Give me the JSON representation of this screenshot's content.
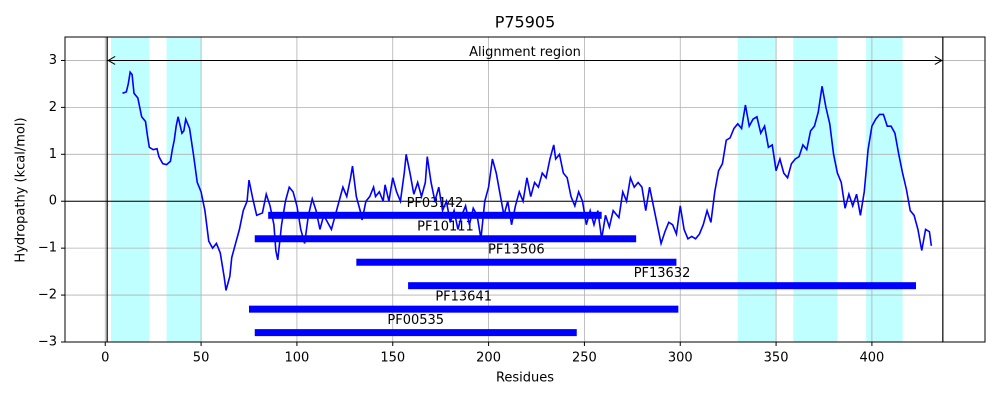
{
  "chart_data": {
    "type": "line",
    "title": "P75905",
    "xlabel": "Residues",
    "ylabel": "Hydropathy (kcal/mol)",
    "color": "#0000ff",
    "grid": true,
    "xlim": [
      -21,
      459
    ],
    "ylim": [
      -3,
      3.5
    ],
    "xticks": [
      0,
      50,
      100,
      150,
      200,
      250,
      300,
      350,
      400
    ],
    "yticks": [
      {
        "value": -3,
        "label": "−3"
      },
      {
        "value": -2,
        "label": "−2"
      },
      {
        "value": -1,
        "label": "−1"
      },
      0,
      1,
      2,
      3
    ],
    "hline": 0,
    "spans": [
      [
        3,
        23
      ],
      [
        32,
        50
      ],
      [
        330,
        350
      ],
      [
        359,
        382
      ],
      [
        397,
        416
      ]
    ],
    "span_color": "#c0ffff",
    "vlines": [
      1,
      437
    ],
    "annotation": {
      "text": "Alignment region",
      "y": 3
    },
    "domains": [
      {
        "label": "PF03142",
        "start": 85,
        "end": 259,
        "y": -0.3
      },
      {
        "label": "PF10111",
        "start": 78,
        "end": 277,
        "y": -0.8
      },
      {
        "label": "PF13506",
        "start": 131,
        "end": 298,
        "y": -1.3
      },
      {
        "label": "PF13632",
        "start": 158,
        "end": 423,
        "y": -1.8
      },
      {
        "label": "PF13641",
        "start": 75,
        "end": 299,
        "y": -2.3
      },
      {
        "label": "PF00535",
        "start": 78,
        "end": 246,
        "y": -2.8
      }
    ],
    "x": [
      9,
      11,
      12,
      13,
      14,
      15,
      17,
      19,
      21,
      22,
      23,
      25,
      27,
      28,
      30,
      32,
      34,
      35,
      36,
      37,
      38,
      40,
      41,
      42,
      44,
      46,
      48,
      50,
      52,
      54,
      56,
      58,
      60,
      62,
      63,
      65,
      66,
      68,
      70,
      72,
      74,
      75,
      77,
      79,
      82,
      84,
      86,
      88,
      89,
      90,
      92,
      94,
      96,
      98,
      100,
      102,
      104,
      106,
      108,
      110,
      112,
      114,
      118,
      120,
      122,
      124,
      126,
      128,
      129,
      131,
      133,
      134,
      136,
      138,
      140,
      141,
      143,
      145,
      146,
      148,
      150,
      152,
      154,
      156,
      157,
      159,
      161,
      163,
      165,
      167,
      168,
      170,
      172,
      174,
      176,
      178,
      180,
      182,
      184,
      186,
      188,
      190,
      192,
      194,
      196,
      198,
      200,
      202,
      204,
      206,
      208,
      210,
      212,
      214,
      216,
      218,
      220,
      222,
      224,
      226,
      228,
      230,
      232,
      234,
      235,
      237,
      239,
      241,
      243,
      245,
      247,
      249,
      251,
      253,
      255,
      257,
      259,
      261,
      263,
      265,
      268,
      270,
      272,
      274,
      276,
      278,
      280,
      282,
      284,
      286,
      288,
      290,
      292,
      294,
      296,
      298,
      300,
      302,
      304,
      306,
      308,
      310,
      312,
      314,
      316,
      318,
      320,
      322,
      324,
      326,
      328,
      330,
      332,
      334,
      336,
      338,
      340,
      342,
      344,
      346,
      348,
      350,
      352,
      354,
      356,
      358,
      360,
      362,
      364,
      366,
      368,
      370,
      372,
      374,
      376,
      378,
      380,
      382,
      384,
      386,
      388,
      390,
      392,
      394,
      396,
      398,
      400,
      402,
      404,
      406,
      408,
      410,
      412,
      414,
      416,
      418,
      420,
      422,
      424,
      426,
      428,
      430,
      431
    ],
    "values": [
      2.3,
      2.33,
      2.5,
      2.75,
      2.7,
      2.3,
      2.2,
      1.8,
      1.7,
      1.4,
      1.15,
      1.1,
      1.12,
      0.95,
      0.8,
      0.78,
      0.85,
      1.1,
      1.3,
      1.6,
      1.8,
      1.45,
      1.5,
      1.75,
      1.55,
      1.0,
      0.4,
      0.2,
      -0.2,
      -0.85,
      -1.0,
      -0.9,
      -1.1,
      -1.6,
      -1.9,
      -1.6,
      -1.2,
      -0.9,
      -0.6,
      -0.2,
      0.0,
      0.45,
      0.05,
      -0.3,
      -0.25,
      0.15,
      -0.1,
      -0.5,
      -1.05,
      -1.25,
      -0.5,
      0.0,
      0.3,
      0.2,
      -0.1,
      -0.6,
      -0.9,
      -0.3,
      0.05,
      -0.2,
      -0.6,
      -0.3,
      -0.6,
      -0.3,
      0.0,
      0.3,
      0.1,
      0.5,
      0.75,
      0.1,
      -0.2,
      -0.4,
      0.0,
      0.1,
      0.3,
      0.1,
      0.2,
      0.0,
      0.35,
      0.0,
      0.5,
      0.2,
      0.0,
      0.6,
      1.0,
      0.6,
      0.15,
      0.4,
      0.1,
      0.4,
      0.95,
      0.4,
      0.0,
      0.3,
      -0.2,
      0.0,
      -0.45,
      -0.2,
      -0.6,
      -0.3,
      -0.1,
      -0.5,
      -0.15,
      -0.3,
      -0.8,
      0.0,
      0.3,
      0.9,
      0.6,
      0.15,
      -0.3,
      0.0,
      -0.5,
      -0.1,
      0.2,
      0.0,
      0.5,
      0.1,
      0.4,
      0.3,
      0.6,
      0.5,
      0.9,
      1.2,
      0.9,
      1.0,
      0.6,
      0.5,
      0.1,
      -0.1,
      0.2,
      0.0,
      -0.5,
      -0.2,
      -0.5,
      -0.2,
      -0.8,
      -0.3,
      -0.55,
      -0.2,
      -0.35,
      0.2,
      0.0,
      0.5,
      0.3,
      0.4,
      0.3,
      -0.2,
      0.3,
      -0.1,
      -0.5,
      -0.9,
      -0.65,
      -0.45,
      -0.5,
      -0.7,
      -0.1,
      -0.6,
      -0.8,
      -0.75,
      -0.8,
      -0.7,
      -0.5,
      -0.2,
      -0.45,
      0.2,
      0.65,
      0.8,
      1.3,
      1.35,
      1.55,
      1.65,
      1.55,
      2.05,
      1.6,
      1.75,
      1.8,
      1.45,
      1.6,
      1.15,
      1.2,
      0.65,
      0.9,
      0.6,
      0.5,
      0.8,
      0.9,
      0.95,
      1.2,
      1.1,
      1.5,
      1.6,
      1.9,
      2.45,
      2.0,
      1.65,
      1.0,
      0.6,
      0.4,
      -0.15,
      0.15,
      -0.1,
      0.15,
      -0.3,
      0.2,
      1.1,
      1.6,
      1.75,
      1.85,
      1.85,
      1.6,
      1.6,
      1.45,
      1.0,
      0.6,
      0.25,
      -0.2,
      -0.3,
      -0.6,
      -1.05,
      -0.6,
      -0.65,
      -0.95
    ]
  }
}
